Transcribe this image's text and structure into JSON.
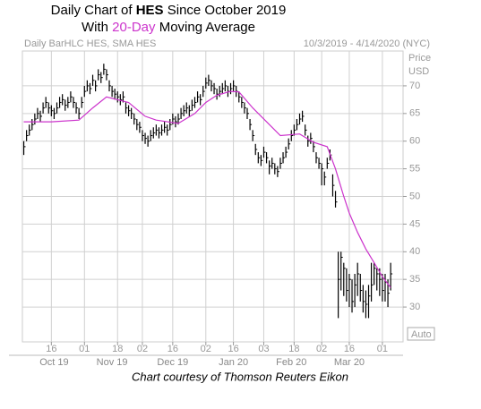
{
  "chart_data": {
    "type": "hlc",
    "title_parts": [
      "Daily Chart of ",
      "HES",
      " Since October 2019"
    ],
    "subtitle_parts": [
      "With ",
      "20-Day",
      " Moving Average"
    ],
    "header_left": "Daily BarHLC HES, SMA HES",
    "header_right": "10/3/2019 - 4/14/2020 (NYC)",
    "axis_label_top": "Price",
    "axis_label_unit": "USD",
    "auto_label": "Auto",
    "caption": "Chart courtesy of Thomson Reuters Eikon",
    "xlim": [
      -0.5,
      137.5
    ],
    "ylim": [
      23.7,
      76.3
    ],
    "yticks": [
      30,
      35,
      40,
      45,
      50,
      55,
      60,
      65,
      70
    ],
    "xticks": [
      {
        "value": 10,
        "label": "16"
      },
      {
        "value": 22,
        "label": "01"
      },
      {
        "value": 34,
        "label": "18"
      },
      {
        "value": 43,
        "label": "02"
      },
      {
        "value": 54,
        "label": "16"
      },
      {
        "value": 66,
        "label": "02"
      },
      {
        "value": 76,
        "label": "16"
      },
      {
        "value": 87,
        "label": "03"
      },
      {
        "value": 98,
        "label": "18"
      },
      {
        "value": 108,
        "label": "02"
      },
      {
        "value": 118,
        "label": "16"
      },
      {
        "value": 130,
        "label": "01"
      }
    ],
    "month_labels": [
      {
        "value": 11,
        "label": "Oct 19"
      },
      {
        "value": 32,
        "label": "Nov 19"
      },
      {
        "value": 54,
        "label": "Dec 19"
      },
      {
        "value": 76,
        "label": "Jan 20"
      },
      {
        "value": 97,
        "label": "Feb 20"
      },
      {
        "value": 118,
        "label": "Mar 20"
      }
    ],
    "grid": true,
    "bar_color": "#000000",
    "high": [
      60,
      62,
      63,
      64,
      65,
      66,
      65.5,
      67,
      68,
      67,
      66.5,
      66,
      67,
      68,
      68.5,
      67.5,
      68,
      69,
      68,
      67,
      66,
      68,
      70,
      71,
      70.5,
      72,
      71,
      73,
      72.5,
      74,
      73,
      71,
      70,
      69.5,
      69,
      68.5,
      69,
      67,
      66.5,
      66,
      65,
      64,
      63.5,
      62,
      61.5,
      61,
      62,
      62.5,
      63,
      62.5,
      63,
      63.5,
      63,
      64,
      65,
      64.5,
      65,
      66,
      66.5,
      67,
      66.5,
      67.5,
      68,
      69,
      68.5,
      70,
      71.5,
      72,
      71,
      70.5,
      69.5,
      70,
      70.5,
      71,
      70,
      70.5,
      71,
      70,
      69,
      68,
      67,
      66,
      64,
      62,
      59.5,
      58,
      57.5,
      59,
      58,
      56.5,
      57,
      56,
      55.5,
      57,
      58,
      59,
      60.5,
      62,
      63,
      64,
      65,
      65.5,
      63,
      61,
      61.5,
      60,
      58,
      57,
      56,
      54.5,
      57,
      58.5,
      54,
      51,
      40,
      40,
      38,
      37,
      36,
      35,
      36,
      38,
      36,
      34,
      33,
      34,
      38,
      38,
      37,
      37,
      36,
      36,
      35,
      38
    ],
    "low": [
      57.5,
      60,
      61,
      62,
      63,
      64,
      63.5,
      65,
      66,
      65,
      64.5,
      64,
      65,
      66,
      66.5,
      65.5,
      66,
      67,
      66,
      65,
      64,
      66,
      68,
      69,
      68.5,
      70,
      69,
      71,
      70.5,
      72,
      71,
      69,
      68,
      67.5,
      67,
      66.5,
      67,
      65,
      64.5,
      64,
      63,
      62,
      61.5,
      60,
      59.5,
      59,
      60,
      60.5,
      61,
      60.5,
      61,
      61.5,
      61,
      62,
      63,
      62.5,
      63,
      64,
      64.5,
      65,
      64.5,
      65.5,
      66,
      67,
      66.5,
      68,
      69.5,
      70,
      69,
      68.5,
      67.5,
      68,
      68.5,
      69,
      68,
      68.5,
      69,
      68,
      67,
      66,
      65,
      64,
      62,
      60,
      57.5,
      56,
      55.5,
      57,
      56,
      54,
      55,
      54,
      53.5,
      55,
      56,
      57,
      58.5,
      60,
      61,
      62,
      63,
      63.5,
      61,
      59,
      59.5,
      58,
      56,
      55,
      52,
      52,
      55,
      56.5,
      50,
      48,
      28,
      33,
      32,
      31,
      30,
      29,
      30,
      32,
      31,
      29,
      28,
      28,
      31,
      34,
      33,
      32,
      31,
      31,
      30,
      33
    ],
    "close": [
      59,
      61,
      62,
      63,
      64,
      65,
      64.5,
      66,
      67,
      66,
      65.5,
      65,
      66,
      67,
      67.5,
      66.5,
      67,
      68,
      67,
      66,
      65,
      67,
      69,
      70,
      69.5,
      71,
      70,
      72,
      71.5,
      73,
      72,
      70,
      69,
      68.5,
      68,
      67.5,
      68,
      66,
      65.5,
      65,
      64,
      63,
      62.5,
      61,
      60.5,
      60,
      61,
      61.5,
      62,
      61.5,
      62,
      62.5,
      62,
      63,
      64,
      63.5,
      64,
      65,
      65.5,
      66,
      65.5,
      66.5,
      67,
      68,
      67.5,
      69,
      70.5,
      71,
      70,
      69.5,
      68.5,
      69,
      69.5,
      70,
      69,
      69.5,
      70,
      69,
      68,
      67,
      66,
      65,
      63,
      61,
      58.5,
      57,
      56.5,
      58,
      57,
      55.5,
      56,
      55,
      54.5,
      56,
      57,
      58,
      59.5,
      61,
      62,
      63,
      64,
      64.5,
      62,
      60,
      60.5,
      59,
      57,
      56,
      55,
      53.5,
      56,
      57.5,
      52,
      49,
      35,
      39,
      37,
      33,
      35,
      31,
      34,
      36,
      33,
      31,
      30.5,
      32,
      34,
      37,
      36,
      35,
      33,
      34.5,
      32.5,
      36
    ],
    "ma": {
      "color": "#cc33cc",
      "x": [
        0,
        10,
        20,
        25,
        30,
        38,
        44,
        48,
        56,
        62,
        66,
        70,
        75,
        78,
        83,
        88,
        93,
        100,
        105,
        110,
        113,
        116,
        118,
        121,
        124,
        127,
        130,
        133
      ],
      "values": [
        63.5,
        63.5,
        63.8,
        66,
        68,
        67,
        64.5,
        63.8,
        63.2,
        65,
        67,
        68.3,
        69,
        68.9,
        66,
        63.5,
        61,
        61.3,
        59.8,
        59,
        55,
        50,
        47,
        43.5,
        40.5,
        38,
        35.5,
        33.5
      ]
    }
  }
}
